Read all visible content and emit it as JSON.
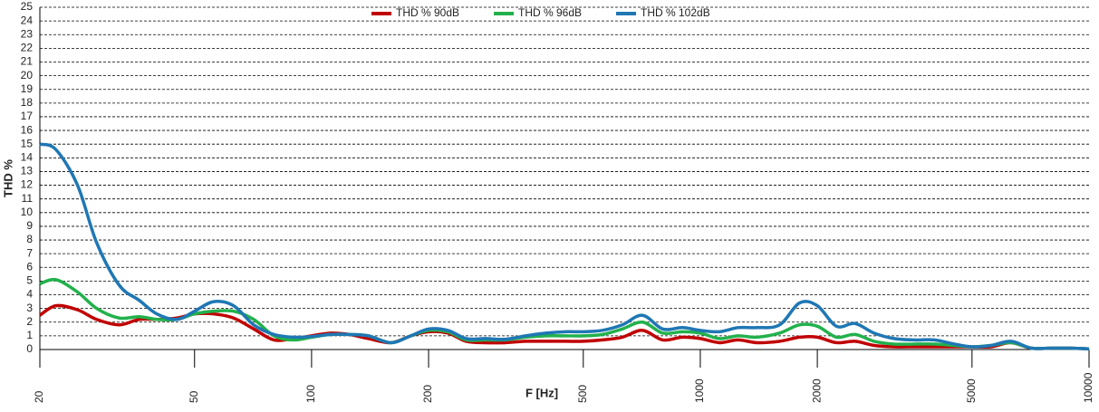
{
  "chart_data": {
    "type": "line",
    "x_label": "F [Hz]",
    "y_label": "THD %",
    "x": [
      20,
      22,
      25,
      28,
      32,
      36,
      40,
      45,
      50,
      56,
      63,
      71,
      80,
      90,
      100,
      112,
      125,
      140,
      160,
      180,
      200,
      224,
      250,
      280,
      315,
      355,
      400,
      450,
      500,
      560,
      630,
      710,
      800,
      900,
      1000,
      1120,
      1250,
      1400,
      1600,
      1800,
      2000,
      2240,
      2500,
      2800,
      3150,
      3550,
      4000,
      4500,
      5000,
      5600,
      6300,
      7100,
      8000,
      9000,
      10000
    ],
    "series": [
      {
        "name": "THD % 90dB",
        "color": "#c00000",
        "values": [
          2.5,
          3.2,
          2.9,
          2.2,
          1.8,
          2.2,
          2.2,
          2.3,
          2.6,
          2.6,
          2.3,
          1.5,
          0.7,
          0.8,
          1.0,
          1.2,
          1.1,
          0.8,
          0.5,
          1.0,
          1.3,
          1.2,
          0.6,
          0.5,
          0.5,
          0.6,
          0.6,
          0.6,
          0.6,
          0.7,
          0.9,
          1.4,
          0.7,
          0.9,
          0.8,
          0.5,
          0.7,
          0.5,
          0.6,
          0.9,
          0.9,
          0.5,
          0.6,
          0.3,
          0.2,
          0.2,
          0.2,
          0.2,
          0.2,
          0.2,
          0.5,
          0.1,
          0.1,
          0.1,
          0.05
        ]
      },
      {
        "name": "THD % 96dB",
        "color": "#22b14c",
        "values": [
          4.8,
          5.1,
          4.2,
          3.0,
          2.3,
          2.4,
          2.2,
          2.2,
          2.6,
          2.8,
          2.8,
          2.2,
          1.0,
          0.7,
          0.9,
          1.1,
          1.1,
          1.0,
          0.5,
          1.0,
          1.4,
          1.3,
          0.7,
          0.7,
          0.7,
          0.9,
          1.0,
          1.0,
          1.0,
          1.1,
          1.5,
          2.0,
          1.2,
          1.3,
          1.2,
          0.8,
          1.0,
          0.9,
          1.2,
          1.8,
          1.7,
          0.9,
          1.1,
          0.6,
          0.4,
          0.4,
          0.4,
          0.3,
          0.2,
          0.3,
          0.5,
          0.1,
          0.1,
          0.1,
          0.05
        ]
      },
      {
        "name": "THD % 102dB",
        "color": "#1f77b4",
        "values": [
          15,
          14.6,
          12,
          7.8,
          4.7,
          3.6,
          2.6,
          2.2,
          2.8,
          3.5,
          3.2,
          1.8,
          1.1,
          0.9,
          0.95,
          1.1,
          1.1,
          1.0,
          0.5,
          1.0,
          1.5,
          1.4,
          0.8,
          0.8,
          0.75,
          1.0,
          1.2,
          1.3,
          1.3,
          1.4,
          1.8,
          2.5,
          1.5,
          1.6,
          1.4,
          1.3,
          1.6,
          1.6,
          1.8,
          3.4,
          3.2,
          1.7,
          1.9,
          1.2,
          0.8,
          0.7,
          0.7,
          0.4,
          0.2,
          0.3,
          0.6,
          0.1,
          0.1,
          0.1,
          0.05
        ]
      }
    ],
    "xlim": [
      20,
      10000
    ],
    "xticks": [
      20,
      50,
      100,
      200,
      500,
      1000,
      2000,
      5000,
      10000
    ],
    "xscale": "log",
    "ylim": [
      0,
      25
    ],
    "yticks": [
      0,
      1,
      2,
      3,
      4,
      5,
      6,
      7,
      8,
      9,
      10,
      11,
      12,
      13,
      14,
      15,
      16,
      17,
      18,
      19,
      20,
      21,
      22,
      23,
      24,
      25
    ],
    "grid": true,
    "legend": "top"
  }
}
